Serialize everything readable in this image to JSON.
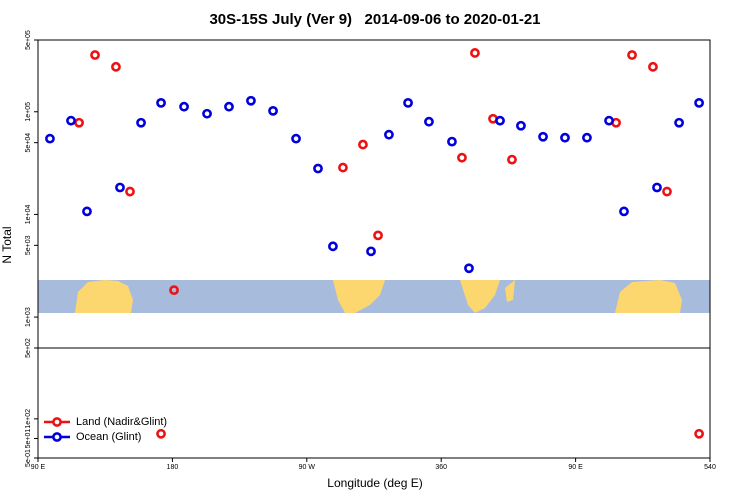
{
  "chart_data": [
    {
      "type": "scatter",
      "title": "30S-15S July (Ver 9)   2014-09-06 to 2020-01-21",
      "ylabel": "N Total",
      "log_scale": true,
      "xlim": [
        90,
        540
      ],
      "ylim": [
        500,
        500000
      ],
      "yticks": [
        {
          "value": 500,
          "label": "5e+02"
        },
        {
          "value": 1000,
          "label": "1e+03"
        },
        {
          "value": 5000,
          "label": "5e+03"
        },
        {
          "value": 10000,
          "label": "1e+04"
        },
        {
          "value": 50000,
          "label": "5e+04"
        },
        {
          "value": 100000,
          "label": "1e+05"
        },
        {
          "value": 500000,
          "label": "5e+05"
        }
      ],
      "series": [
        {
          "name": "Land (Nadir&Glint)",
          "color": "#ee1111",
          "x": [
            117.5,
            128.2,
            142.2,
            151.6,
            181.1,
            294.2,
            307.6,
            317.7,
            373.9,
            382.6,
            394.7,
            407.4,
            477.1,
            487.8,
            501.8,
            511.2
          ],
          "values": [
            78200,
            357000,
            274000,
            16700,
            1830,
            28600,
            47900,
            6250,
            35700,
            374000,
            85500,
            34200,
            78200,
            357000,
            274000,
            16700
          ]
        },
        {
          "name": "Ocean (Glint)",
          "color": "#0000dd",
          "x": [
            98.0,
            112.1,
            122.8,
            144.9,
            159.0,
            172.4,
            187.8,
            203.2,
            217.9,
            232.6,
            247.4,
            262.8,
            277.5,
            287.5,
            313.0,
            325.0,
            337.8,
            351.8,
            367.2,
            378.6,
            399.4,
            413.4,
            428.2,
            442.9,
            457.6,
            472.4,
            482.4,
            504.5,
            519.3,
            532.7
          ],
          "values": [
            54700,
            81900,
            10700,
            18300,
            78200,
            122000,
            112000,
            95700,
            112000,
            128000,
            102000,
            54700,
            28000,
            4890,
            4370,
            59800,
            122000,
            80000,
            51200,
            2990,
            81900,
            73100,
            57100,
            55900,
            55900,
            81900,
            10700,
            18300,
            78200,
            122000
          ]
        }
      ]
    },
    {
      "type": "scatter",
      "xlabel": "Longitude (deg E)",
      "xlim": [
        90,
        540
      ],
      "xticks": [
        {
          "value": 90,
          "label": "90 E"
        },
        180,
        {
          "value": 270,
          "label": "90 W"
        },
        360,
        {
          "value": 450,
          "label": "90 E"
        },
        540
      ],
      "ylim": [
        0.5,
        280
      ],
      "yticks": [
        {
          "value": 0.5,
          "label": "5e-01"
        },
        {
          "value": 50,
          "label": "5e+01"
        },
        {
          "value": 100,
          "label": "1e+02"
        }
      ],
      "legend": "bottom-left",
      "series": [
        {
          "name": "Land (Nadir&Glint)",
          "color": "#ee1111",
          "x": [
            172.4,
            532.7
          ],
          "values": [
            62,
            62
          ]
        },
        {
          "name": "Ocean (Glint)",
          "color": "#0000dd",
          "x": [],
          "values": []
        }
      ]
    }
  ]
}
